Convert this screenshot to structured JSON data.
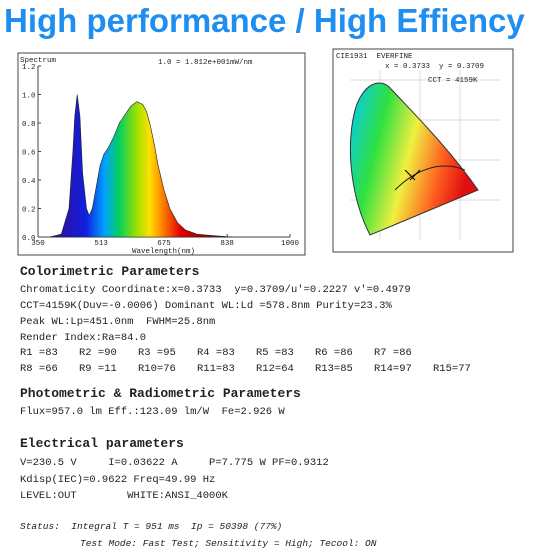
{
  "header": {
    "title": "High performance / High Effiency"
  },
  "spectrum": {
    "title": "Spectrum",
    "scale_note": "1.0 = 1.812e+001mW/nm",
    "x_label": "Wavelength(nm)",
    "xlim": [
      350,
      1000
    ],
    "ylim": [
      0,
      1.2
    ],
    "xticks": [
      350,
      513,
      675,
      838,
      1000
    ],
    "yticks": [
      {
        "value": 0,
        "label": "0.0"
      },
      0.2,
      0.4,
      0.6,
      0.8,
      {
        "value": 1,
        "label": "1.0"
      },
      1.2
    ],
    "x": [
      380,
      410,
      430,
      440,
      445,
      451,
      458,
      465,
      475,
      482,
      490,
      500,
      510,
      520,
      530,
      545,
      560,
      575,
      590,
      605,
      620,
      630,
      640,
      650,
      660,
      675,
      690,
      710,
      730,
      760,
      800,
      850
    ],
    "values": [
      0,
      0.02,
      0.2,
      0.6,
      0.85,
      1.0,
      0.85,
      0.45,
      0.2,
      0.15,
      0.2,
      0.35,
      0.5,
      0.58,
      0.62,
      0.7,
      0.8,
      0.86,
      0.92,
      0.95,
      0.93,
      0.88,
      0.78,
      0.65,
      0.5,
      0.33,
      0.2,
      0.1,
      0.05,
      0.02,
      0.01,
      0
    ]
  },
  "cie": {
    "title": "CIE1931  EVERFINE",
    "coordinates": "x = 0.3733  y = 0.3709",
    "cct": "CCT = 4159K"
  },
  "colorimetric": {
    "heading": "Colorimetric Parameters",
    "lines": [
      "Chromaticity Coordinate:x=0.3733  y=0.3709/u'=0.2227 v'=0.4979",
      "CCT=4159K(Duv=-0.0006) Dominant WL:Ld =578.8nm Purity=23.3%",
      "Peak WL:Lp=451.0nm  FWHM=25.8nm",
      "Render Index:Ra=84.0"
    ],
    "render_index": [
      [
        "R1 =83",
        "R2 =90",
        "R3 =95",
        "R4 =83",
        "R5 =83",
        "R6 =86",
        "R7 =86"
      ],
      [
        "R8 =66",
        "R9 =11",
        "R10=76",
        "R11=83",
        "R12=64",
        "R13=85",
        "R14=97",
        "R15=77"
      ]
    ]
  },
  "photometric": {
    "heading": "Photometric & Radiometric Parameters",
    "lines": [
      "Flux=957.0 lm Eff.:123.09 lm/W  Fe=2.926 W"
    ]
  },
  "electrical": {
    "heading": "Electrical parameters",
    "lines": [
      "V=230.5 V     I=0.03622 A     P=7.775 W PF=0.9312",
      "Kdisp(IEC)=0.9622 Freq=49.99 Hz",
      "LEVEL:OUT        WHITE:ANSI_4000K"
    ]
  },
  "status": {
    "lines": [
      "Status:  Integral T = 951 ms  Ip = 50398 (77%)",
      "Test Mode: Fast Test; Sensitivity = High; Tecool: ON"
    ]
  }
}
